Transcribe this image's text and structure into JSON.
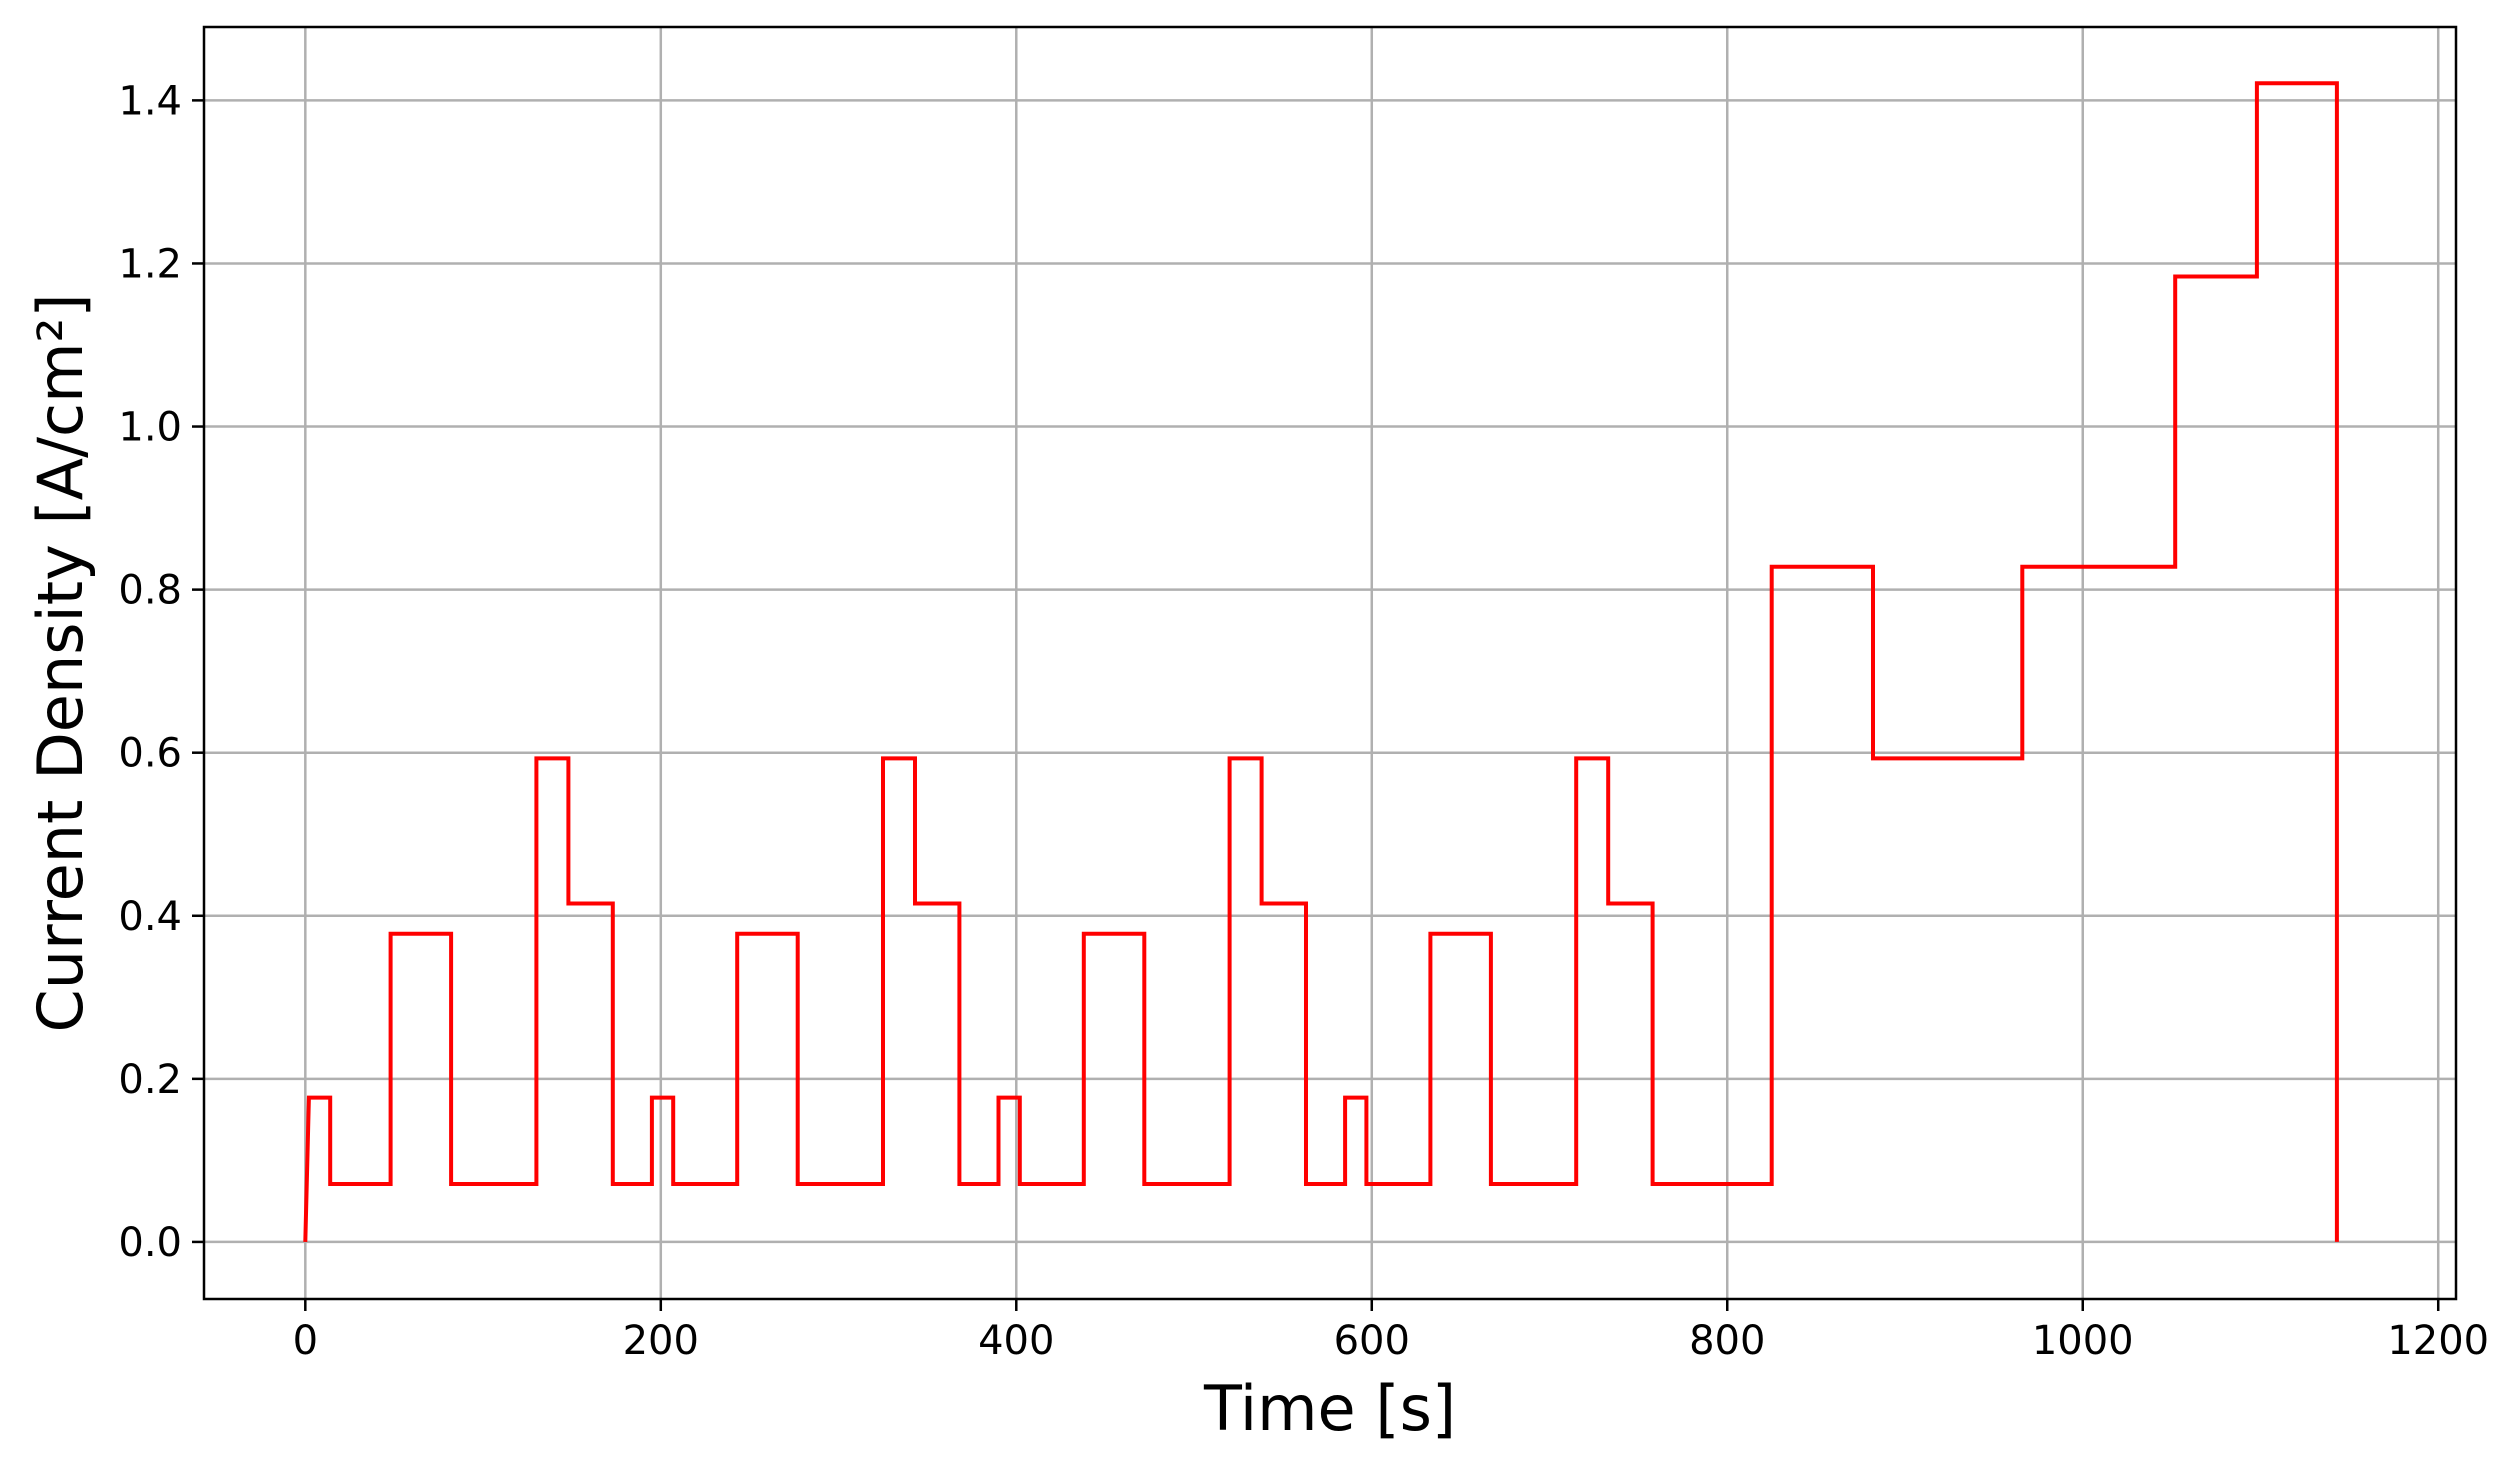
{
  "chart_data": {
    "type": "line",
    "title": "",
    "xlabel": "Time [s]",
    "ylabel": "Current Density [A/cm²]",
    "xlim": [
      -57,
      1210
    ],
    "ylim": [
      -0.07,
      1.49
    ],
    "xticks": [
      0,
      200,
      400,
      600,
      800,
      1000,
      1200
    ],
    "yticks": [
      0.0,
      0.2,
      0.4,
      0.6,
      0.8,
      1.0,
      1.2,
      1.4
    ],
    "xtick_labels": [
      "0",
      "200",
      "400",
      "600",
      "800",
      "1000",
      "1200"
    ],
    "ytick_labels": [
      "0.0",
      "0.2",
      "0.4",
      "0.6",
      "0.8",
      "1.0",
      "1.2",
      "1.4"
    ],
    "grid": true,
    "legend": "none",
    "series": [
      {
        "color": "#ff0000",
        "x": [
          0,
          2,
          2,
          14,
          14,
          48,
          48,
          82,
          82,
          130,
          130,
          148,
          148,
          173,
          173,
          195,
          195,
          207,
          207,
          243,
          243,
          277,
          277,
          325,
          325,
          343,
          343,
          368,
          368,
          390,
          390,
          402,
          402,
          438,
          438,
          472,
          472,
          520,
          520,
          538,
          538,
          563,
          563,
          585,
          585,
          597,
          597,
          633,
          633,
          667,
          667,
          715,
          715,
          733,
          733,
          758,
          758,
          825,
          825,
          882,
          882,
          966,
          966,
          1052,
          1052,
          1098,
          1098,
          1143,
          1143
        ],
        "y": [
          0.0,
          0.177,
          0.177,
          0.177,
          0.071,
          0.071,
          0.378,
          0.378,
          0.071,
          0.071,
          0.593,
          0.593,
          0.415,
          0.415,
          0.071,
          0.071,
          0.177,
          0.177,
          0.071,
          0.071,
          0.378,
          0.378,
          0.071,
          0.071,
          0.593,
          0.593,
          0.415,
          0.415,
          0.071,
          0.071,
          0.177,
          0.177,
          0.071,
          0.071,
          0.378,
          0.378,
          0.071,
          0.071,
          0.593,
          0.593,
          0.415,
          0.415,
          0.071,
          0.071,
          0.177,
          0.177,
          0.071,
          0.071,
          0.378,
          0.378,
          0.071,
          0.071,
          0.593,
          0.593,
          0.415,
          0.415,
          0.071,
          0.071,
          0.828,
          0.828,
          0.593,
          0.593,
          0.828,
          0.828,
          1.184,
          1.184,
          1.421,
          1.421,
          0.0
        ]
      }
    ]
  }
}
